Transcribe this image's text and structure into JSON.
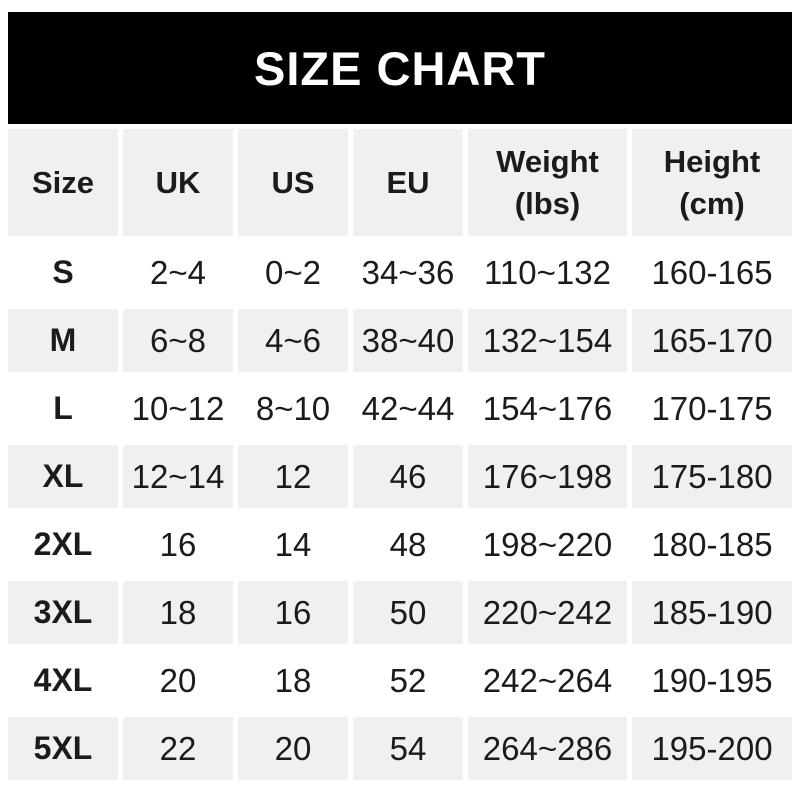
{
  "banner": {
    "title": "SIZE CHART",
    "bg_color": "#000000",
    "text_color": "#ffffff"
  },
  "colors": {
    "row_shade": "#f0f0f0",
    "row_plain": "#ffffff",
    "text": "#1b1b1b"
  },
  "table": {
    "columns": [
      {
        "label": "Size"
      },
      {
        "label": "UK"
      },
      {
        "label": "US"
      },
      {
        "label": "EU"
      },
      {
        "label": "Weight",
        "sub": "(lbs)"
      },
      {
        "label": "Height",
        "sub": "(cm)"
      }
    ],
    "rows": [
      {
        "size": "S",
        "uk": "2~4",
        "us": "0~2",
        "eu": "34~36",
        "weight": "110~132",
        "height": "160-165",
        "shaded": false
      },
      {
        "size": "M",
        "uk": "6~8",
        "us": "4~6",
        "eu": "38~40",
        "weight": "132~154",
        "height": "165-170",
        "shaded": true
      },
      {
        "size": "L",
        "uk": "10~12",
        "us": "8~10",
        "eu": "42~44",
        "weight": "154~176",
        "height": "170-175",
        "shaded": false
      },
      {
        "size": "XL",
        "uk": "12~14",
        "us": "12",
        "eu": "46",
        "weight": "176~198",
        "height": "175-180",
        "shaded": true
      },
      {
        "size": "2XL",
        "uk": "16",
        "us": "14",
        "eu": "48",
        "weight": "198~220",
        "height": "180-185",
        "shaded": false
      },
      {
        "size": "3XL",
        "uk": "18",
        "us": "16",
        "eu": "50",
        "weight": "220~242",
        "height": "185-190",
        "shaded": true
      },
      {
        "size": "4XL",
        "uk": "20",
        "us": "18",
        "eu": "52",
        "weight": "242~264",
        "height": "190-195",
        "shaded": false
      },
      {
        "size": "5XL",
        "uk": "22",
        "us": "20",
        "eu": "54",
        "weight": "264~286",
        "height": "195-200",
        "shaded": true
      }
    ]
  },
  "chart_data": {
    "type": "table",
    "title": "SIZE CHART",
    "columns": [
      "Size",
      "UK",
      "US",
      "EU",
      "Weight (lbs)",
      "Height (cm)"
    ],
    "rows": [
      [
        "S",
        "2~4",
        "0~2",
        "34~36",
        "110~132",
        "160-165"
      ],
      [
        "M",
        "6~8",
        "4~6",
        "38~40",
        "132~154",
        "165-170"
      ],
      [
        "L",
        "10~12",
        "8~10",
        "42~44",
        "154~176",
        "170-175"
      ],
      [
        "XL",
        "12~14",
        "12",
        "46",
        "176~198",
        "175-180"
      ],
      [
        "2XL",
        "16",
        "14",
        "48",
        "198~220",
        "180-185"
      ],
      [
        "3XL",
        "18",
        "16",
        "50",
        "220~242",
        "185-190"
      ],
      [
        "4XL",
        "20",
        "18",
        "52",
        "242~264",
        "190-195"
      ],
      [
        "5XL",
        "22",
        "20",
        "54",
        "264~286",
        "195-200"
      ]
    ]
  }
}
